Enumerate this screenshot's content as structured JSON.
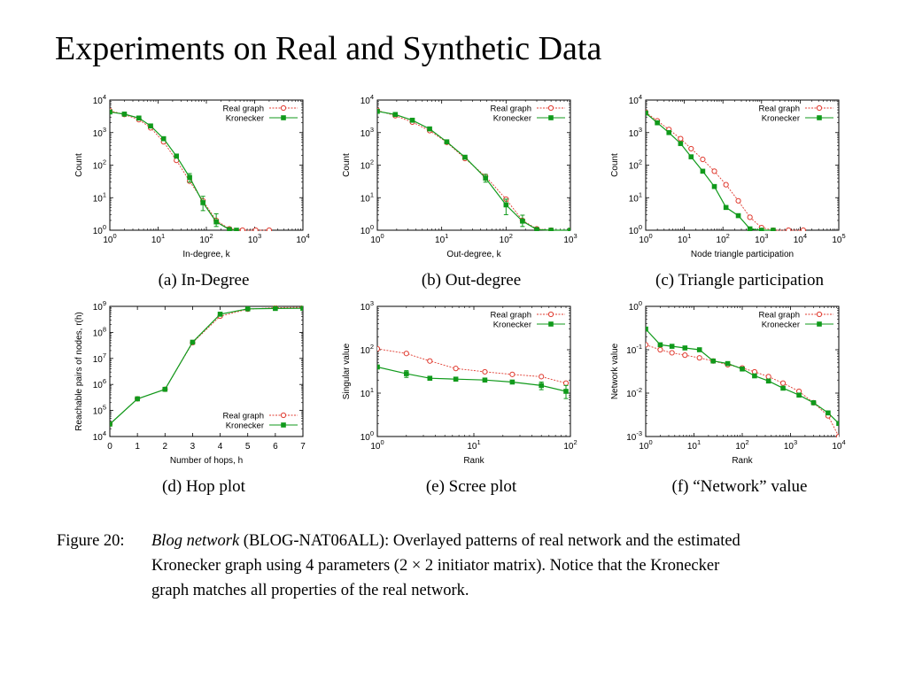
{
  "slide": {
    "title": "Experiments on Real and Synthetic Data"
  },
  "colors": {
    "real": "#e03c31",
    "kron": "#109a1b"
  },
  "figure": {
    "label": "Figure 20:",
    "italic": "Blog network",
    "dataset": "BLOG-NAT06ALL",
    "rest1": "): Overlayed patterns of real network and the estimated",
    "line2": "Kronecker graph using 4 parameters (2 × 2 initiator matrix). Notice that the Kronecker",
    "line3": "graph matches all properties of the real network."
  },
  "chart_data": [
    {
      "id": "a",
      "type": "line",
      "caption": "(a) In-Degree",
      "xlabel": "In-degree, k",
      "ylabel": "Count",
      "xlog": true,
      "ylog": true,
      "xlim": [
        1,
        10000
      ],
      "ylim": [
        1,
        10000
      ],
      "xticks": [
        {
          "v": 1,
          "e": "0"
        },
        {
          "v": 10,
          "e": "1"
        },
        {
          "v": 100,
          "e": "2"
        },
        {
          "v": 1000,
          "e": "3"
        },
        {
          "v": 10000,
          "e": "4"
        }
      ],
      "yticks": [
        {
          "v": 1,
          "e": "0"
        },
        {
          "v": 10,
          "e": "1"
        },
        {
          "v": 100,
          "e": "2"
        },
        {
          "v": 1000,
          "e": "3"
        },
        {
          "v": 10000,
          "e": "4"
        }
      ],
      "legend": "top-right",
      "series": [
        {
          "name": "Real graph",
          "key": "real",
          "x": [
            1,
            2,
            4,
            7,
            13,
            24,
            45,
            85,
            160,
            300,
            560,
            1050,
            2000
          ],
          "y": [
            4700,
            3600,
            2500,
            1400,
            520,
            140,
            32,
            8,
            2,
            1.1,
            1,
            1,
            1
          ]
        },
        {
          "name": "Kronecker",
          "key": "kron",
          "x": [
            1,
            2,
            4,
            7,
            13,
            24,
            45,
            85,
            160,
            300,
            420
          ],
          "y": [
            4300,
            3700,
            2800,
            1600,
            650,
            190,
            42,
            7,
            1.8,
            1.05,
            1
          ],
          "err": [
            null,
            null,
            null,
            null,
            null,
            null,
            [
              30,
              55
            ],
            [
              4,
              11
            ],
            [
              1.3,
              3.2
            ],
            null,
            null
          ]
        }
      ]
    },
    {
      "id": "b",
      "type": "line",
      "caption": "(b) Out-degree",
      "xlabel": "Out-degree, k",
      "ylabel": "Count",
      "xlog": true,
      "ylog": true,
      "xlim": [
        1,
        1000
      ],
      "ylim": [
        1,
        10000
      ],
      "xticks": [
        {
          "v": 1,
          "e": "0"
        },
        {
          "v": 10,
          "e": "1"
        },
        {
          "v": 100,
          "e": "2"
        },
        {
          "v": 1000,
          "e": "3"
        }
      ],
      "yticks": [
        {
          "v": 1,
          "e": "0"
        },
        {
          "v": 10,
          "e": "1"
        },
        {
          "v": 100,
          "e": "2"
        },
        {
          "v": 1000,
          "e": "3"
        },
        {
          "v": 10000,
          "e": "4"
        }
      ],
      "legend": "top-right",
      "series": [
        {
          "name": "Real graph",
          "key": "real",
          "x": [
            1,
            1.9,
            3.5,
            6.5,
            12,
            23,
            48,
            100,
            180,
            300,
            500,
            1000
          ],
          "y": [
            4800,
            3300,
            2100,
            1150,
            500,
            160,
            45,
            9,
            2,
            1.1,
            1,
            1
          ]
        },
        {
          "name": "Kronecker",
          "key": "kron",
          "x": [
            1,
            1.9,
            3.5,
            6.5,
            12,
            23,
            48,
            100,
            180,
            300,
            500,
            1000
          ],
          "y": [
            4500,
            3600,
            2400,
            1300,
            520,
            175,
            40,
            6,
            1.9,
            1.05,
            1,
            1
          ],
          "err": [
            null,
            null,
            null,
            null,
            null,
            null,
            [
              30,
              52
            ],
            [
              3,
              9
            ],
            [
              1.3,
              2.9
            ],
            null,
            null,
            null
          ]
        }
      ]
    },
    {
      "id": "c",
      "type": "line",
      "caption": "(c) Triangle participation",
      "xlabel": "Node triangle participation",
      "ylabel": "Count",
      "xlog": true,
      "ylog": true,
      "xlim": [
        1,
        100000
      ],
      "ylim": [
        1,
        10000
      ],
      "xticks": [
        {
          "v": 1,
          "e": "0"
        },
        {
          "v": 10,
          "e": "1"
        },
        {
          "v": 100,
          "e": "2"
        },
        {
          "v": 1000,
          "e": "3"
        },
        {
          "v": 10000,
          "e": "4"
        },
        {
          "v": 100000,
          "e": "5"
        }
      ],
      "yticks": [
        {
          "v": 1,
          "e": "0"
        },
        {
          "v": 10,
          "e": "1"
        },
        {
          "v": 100,
          "e": "2"
        },
        {
          "v": 1000,
          "e": "3"
        },
        {
          "v": 10000,
          "e": "4"
        }
      ],
      "legend": "top-right",
      "series": [
        {
          "name": "Real graph",
          "key": "real",
          "x": [
            1,
            2,
            4,
            8,
            15,
            30,
            60,
            120,
            250,
            500,
            1000,
            2000,
            5000,
            12000
          ],
          "y": [
            4200,
            2300,
            1250,
            650,
            320,
            150,
            65,
            25,
            8,
            2.5,
            1.2,
            1,
            1,
            1
          ]
        },
        {
          "name": "Kronecker",
          "key": "kron",
          "x": [
            1,
            2,
            4,
            8,
            15,
            30,
            60,
            120,
            250,
            500,
            1000,
            2000
          ],
          "y": [
            4000,
            2000,
            1000,
            460,
            180,
            65,
            22,
            5,
            2.8,
            1.1,
            1,
            1
          ]
        }
      ]
    },
    {
      "id": "d",
      "type": "line",
      "caption": "(d) Hop plot",
      "xlabel": "Number of hops, h",
      "ylabel": "Reachable pairs of nodes, r(h)",
      "xlog": false,
      "ylog": true,
      "xlim": [
        0,
        7
      ],
      "ylim": [
        10000,
        1000000000
      ],
      "xticks": [
        {
          "v": 0,
          "t": "0"
        },
        {
          "v": 1,
          "t": "1"
        },
        {
          "v": 2,
          "t": "2"
        },
        {
          "v": 3,
          "t": "3"
        },
        {
          "v": 4,
          "t": "4"
        },
        {
          "v": 5,
          "t": "5"
        },
        {
          "v": 6,
          "t": "6"
        },
        {
          "v": 7,
          "t": "7"
        }
      ],
      "yticks": [
        {
          "v": 10000,
          "e": "4"
        },
        {
          "v": 100000,
          "e": "5"
        },
        {
          "v": 1000000,
          "e": "6"
        },
        {
          "v": 10000000,
          "e": "7"
        },
        {
          "v": 100000000,
          "e": "8"
        },
        {
          "v": 1000000000,
          "e": "9"
        }
      ],
      "legend": "bottom-right",
      "series": [
        {
          "name": "Real graph",
          "key": "real",
          "x": [
            0,
            1,
            2,
            3,
            4,
            5,
            6,
            7
          ],
          "y": [
            30000,
            280000,
            650000,
            40000000,
            420000000,
            780000000,
            890000000,
            920000000
          ]
        },
        {
          "name": "Kronecker",
          "key": "kron",
          "x": [
            0,
            1,
            2,
            3,
            4,
            5,
            6,
            7
          ],
          "y": [
            30000,
            280000,
            650000,
            42000000,
            500000000,
            800000000,
            830000000,
            840000000
          ]
        }
      ]
    },
    {
      "id": "e",
      "type": "line",
      "caption": "(e) Scree plot",
      "xlabel": "Rank",
      "ylabel": "Singular value",
      "xlog": true,
      "ylog": true,
      "xlim": [
        1,
        100
      ],
      "ylim": [
        1,
        1000
      ],
      "xticks": [
        {
          "v": 1,
          "e": "0"
        },
        {
          "v": 10,
          "e": "1"
        },
        {
          "v": 100,
          "e": "2"
        }
      ],
      "yticks": [
        {
          "v": 1,
          "e": "0"
        },
        {
          "v": 10,
          "e": "1"
        },
        {
          "v": 100,
          "e": "2"
        },
        {
          "v": 1000,
          "e": "3"
        }
      ],
      "legend": "top-right",
      "series": [
        {
          "name": "Real graph",
          "key": "real",
          "x": [
            1,
            2,
            3.5,
            6.5,
            13,
            25,
            50,
            90
          ],
          "y": [
            105,
            82,
            55,
            37,
            31,
            27,
            24,
            17
          ]
        },
        {
          "name": "Kronecker",
          "key": "kron",
          "x": [
            1,
            2,
            3.5,
            6.5,
            13,
            25,
            50,
            90
          ],
          "y": [
            40,
            28,
            22,
            21,
            20,
            18,
            15,
            11
          ],
          "err": [
            null,
            [
              23,
              33
            ],
            null,
            null,
            [
              18,
              22
            ],
            null,
            [
              12,
              18
            ],
            [
              7.5,
              15
            ]
          ]
        }
      ]
    },
    {
      "id": "f",
      "type": "line",
      "caption": "(f) “Network” value",
      "xlabel": "Rank",
      "ylabel": "Network value",
      "xlog": true,
      "ylog": true,
      "xlim": [
        1,
        10000
      ],
      "ylim": [
        0.001,
        1
      ],
      "xticks": [
        {
          "v": 1,
          "e": "0"
        },
        {
          "v": 10,
          "e": "1"
        },
        {
          "v": 100,
          "e": "2"
        },
        {
          "v": 1000,
          "e": "3"
        },
        {
          "v": 10000,
          "e": "4"
        }
      ],
      "yticks": [
        {
          "v": 0.001,
          "e": "-3"
        },
        {
          "v": 0.01,
          "e": "-2"
        },
        {
          "v": 0.1,
          "e": "-1"
        },
        {
          "v": 1,
          "e": "0"
        }
      ],
      "legend": "top-right",
      "series": [
        {
          "name": "Real graph",
          "key": "real",
          "x": [
            1,
            2,
            3.5,
            6.5,
            13,
            25,
            50,
            100,
            180,
            350,
            700,
            1500,
            3000,
            6000,
            10000
          ],
          "y": [
            0.13,
            0.1,
            0.085,
            0.075,
            0.065,
            0.055,
            0.045,
            0.038,
            0.031,
            0.024,
            0.017,
            0.011,
            0.006,
            0.003,
            0.001
          ]
        },
        {
          "name": "Kronecker",
          "key": "kron",
          "x": [
            1,
            2,
            3.5,
            6.5,
            13,
            25,
            50,
            100,
            180,
            350,
            700,
            1500,
            3000,
            6000,
            10000
          ],
          "y": [
            0.3,
            0.13,
            0.12,
            0.11,
            0.1,
            0.055,
            0.048,
            0.036,
            0.025,
            0.019,
            0.013,
            0.009,
            0.006,
            0.0035,
            0.002
          ]
        }
      ]
    }
  ]
}
